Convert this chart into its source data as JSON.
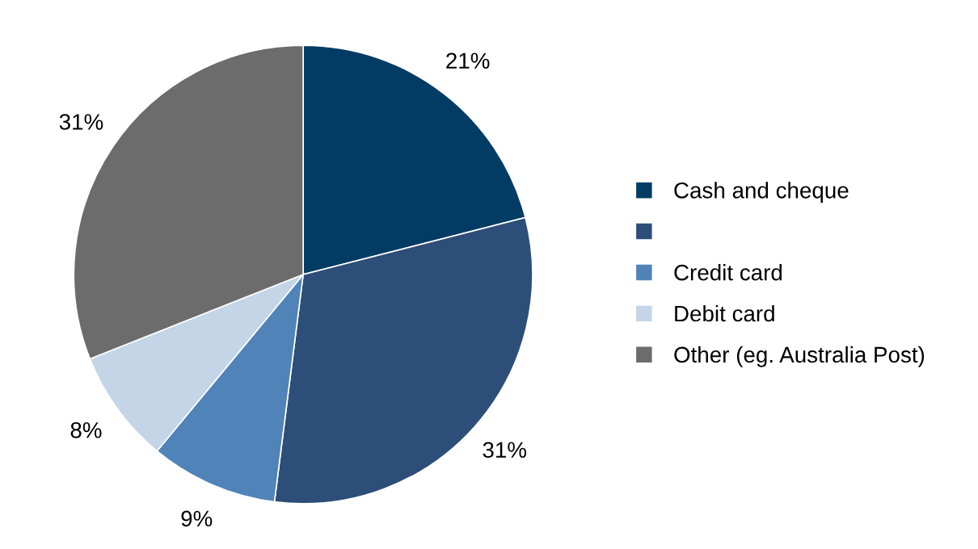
{
  "chart_data": {
    "type": "pie",
    "categories": [
      "Cash and cheque",
      null,
      "Credit card",
      "Debit card",
      "Other (eg. Australia Post)"
    ],
    "values": [
      21,
      31,
      9,
      8,
      31
    ],
    "colors": [
      "#023b64",
      "#2c4e79",
      "#5083b8",
      "#c3d5e6",
      "#6c6c6c"
    ],
    "value_labels": [
      "21%",
      "31%",
      "9%",
      "8%",
      "31%"
    ],
    "legend": "right"
  }
}
